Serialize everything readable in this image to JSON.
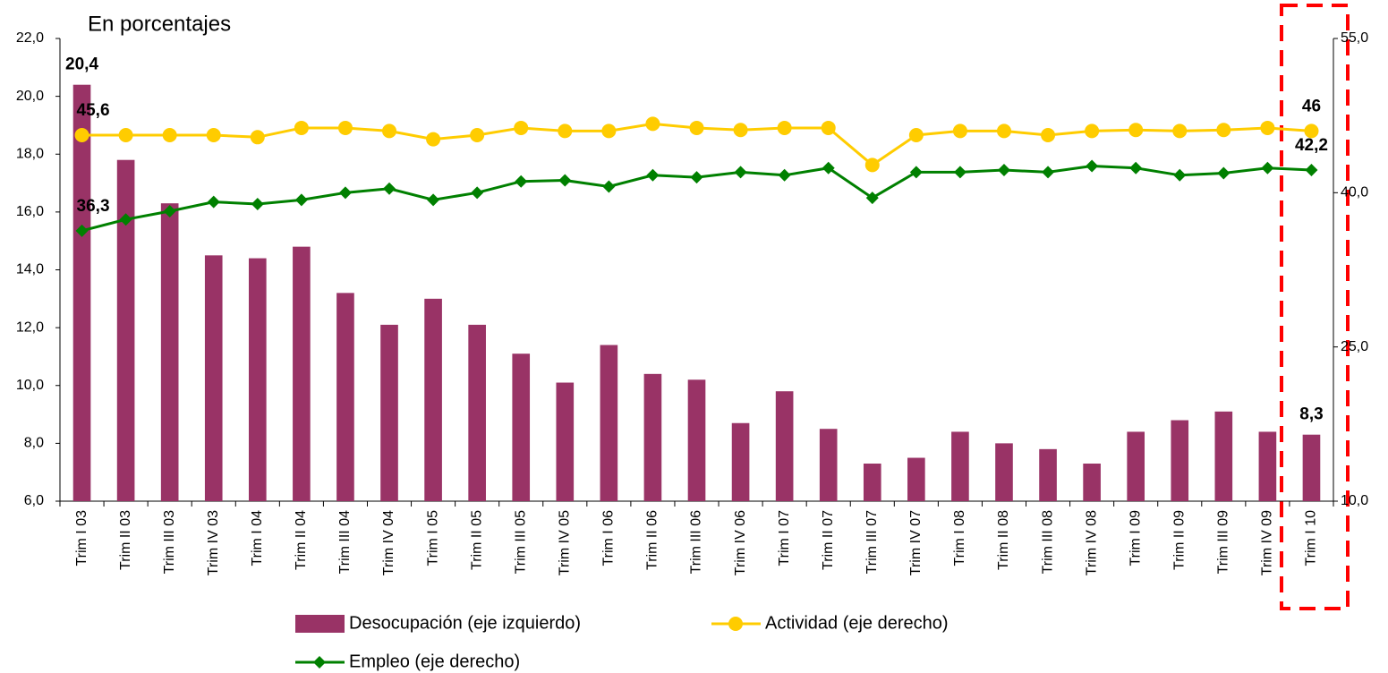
{
  "chart_data": {
    "type": "bar-line",
    "title": "En porcentajes",
    "categories": [
      "Trim I 03",
      "Trim II 03",
      "Trim III 03",
      "Trim IV 03",
      "Trim I 04",
      "Trim II 04",
      "Trim III 04",
      "Trim IV 04",
      "Trim I 05",
      "Trim II 05",
      "Trim III 05",
      "Trim IV 05",
      "Trim I 06",
      "Trim II 06",
      "Trim III 06",
      "Trim IV 06",
      "Trim I 07",
      "Trim II 07",
      "Trim III 07",
      "Trim IV 07",
      "Trim I 08",
      "Trim II 08",
      "Trim III 08",
      "Trim IV 08",
      "Trim I 09",
      "Trim II 09",
      "Trim III 09",
      "Trim IV 09",
      "Trim I 10"
    ],
    "series": [
      {
        "name": "Desocupación (eje izquierdo)",
        "kind": "bar",
        "axis": "y",
        "color": "#993366",
        "values": [
          20.4,
          17.8,
          16.3,
          14.5,
          14.4,
          14.8,
          13.2,
          12.1,
          13.0,
          12.1,
          11.1,
          10.1,
          11.4,
          10.4,
          10.2,
          8.7,
          9.8,
          8.5,
          7.3,
          7.5,
          8.4,
          8.0,
          7.8,
          7.3,
          8.4,
          8.8,
          9.1,
          8.4,
          8.3
        ],
        "value_labels": [
          "20,4",
          null,
          null,
          null,
          null,
          null,
          null,
          null,
          null,
          null,
          null,
          null,
          null,
          null,
          null,
          null,
          null,
          null,
          null,
          null,
          null,
          null,
          null,
          null,
          null,
          null,
          null,
          null,
          "8,3"
        ]
      },
      {
        "name": "Actividad (eje derecho)",
        "kind": "line",
        "marker": "circle",
        "axis": "y2",
        "color": "#ffcc00",
        "values": [
          45.6,
          45.6,
          45.6,
          45.6,
          45.4,
          46.3,
          46.3,
          46.0,
          45.2,
          45.6,
          46.3,
          46.0,
          46.0,
          46.7,
          46.3,
          46.1,
          46.3,
          46.3,
          42.7,
          45.6,
          46.0,
          46.0,
          45.6,
          46.0,
          46.1,
          46.0,
          46.1,
          46.3,
          46
        ],
        "value_labels": [
          "45,6",
          null,
          null,
          null,
          null,
          null,
          null,
          null,
          null,
          null,
          null,
          null,
          null,
          null,
          null,
          null,
          null,
          null,
          null,
          null,
          null,
          null,
          null,
          null,
          null,
          null,
          null,
          null,
          "46"
        ]
      },
      {
        "name": "Empleo (eje derecho)",
        "kind": "line",
        "marker": "diamond",
        "axis": "y2",
        "color": "#008000",
        "values": [
          36.3,
          37.4,
          38.2,
          39.1,
          38.9,
          39.3,
          40.0,
          40.4,
          39.3,
          40.0,
          41.1,
          41.2,
          40.6,
          41.7,
          41.5,
          42.0,
          41.7,
          42.4,
          39.5,
          42.0,
          42.0,
          42.2,
          42.0,
          42.6,
          42.4,
          41.7,
          41.9,
          42.4,
          42.2
        ],
        "value_labels": [
          "36,3",
          null,
          null,
          null,
          null,
          null,
          null,
          null,
          null,
          null,
          null,
          null,
          null,
          null,
          null,
          null,
          null,
          null,
          null,
          null,
          null,
          null,
          null,
          null,
          null,
          null,
          null,
          null,
          "42,2"
        ]
      }
    ],
    "ylim": [
      6,
      22
    ],
    "yticks": [
      {
        "value": 6,
        "label": "6,0"
      },
      {
        "value": 8,
        "label": "8,0"
      },
      {
        "value": 10,
        "label": "10,0"
      },
      {
        "value": 12,
        "label": "12,0"
      },
      {
        "value": 14,
        "label": "14,0"
      },
      {
        "value": 16,
        "label": "16,0"
      },
      {
        "value": 18,
        "label": "18,0"
      },
      {
        "value": 20,
        "label": "20,0"
      },
      {
        "value": 22,
        "label": "22,0"
      }
    ],
    "y2lim": [
      10,
      55
    ],
    "y2ticks": [
      {
        "value": 10,
        "label": "10,0"
      },
      {
        "value": 25,
        "label": "25,0"
      },
      {
        "value": 40,
        "label": "40,0"
      },
      {
        "value": 55,
        "label": "55,0"
      }
    ],
    "grid": false,
    "legend": "bottom"
  }
}
